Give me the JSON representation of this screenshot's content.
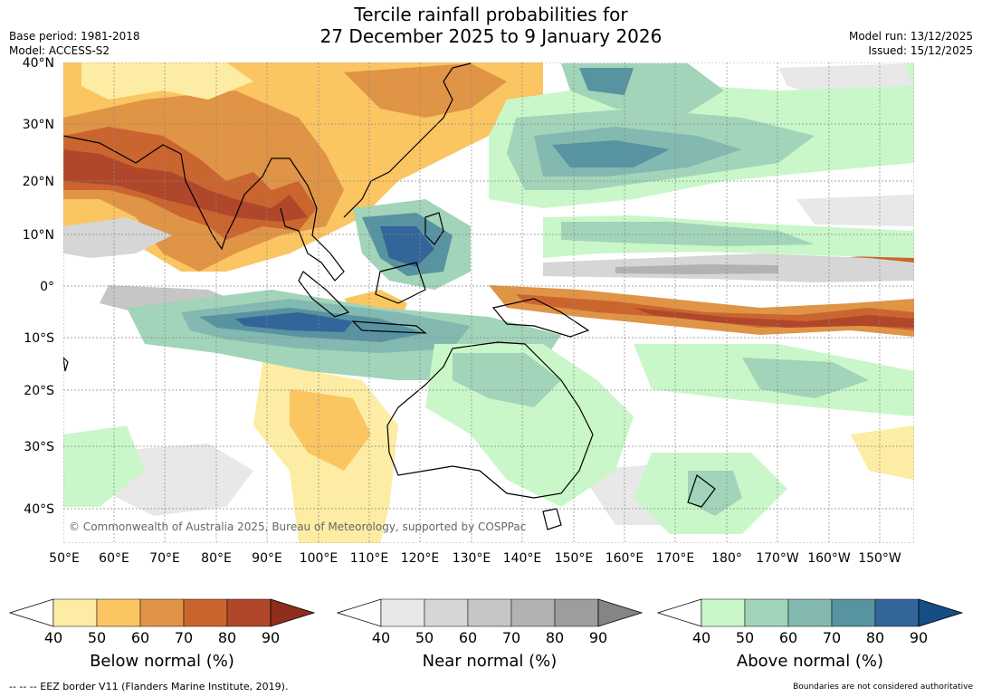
{
  "title": {
    "line1": "Tercile rainfall probabilities for",
    "line2": "27 December 2025 to 9 January 2026"
  },
  "meta_left": {
    "base_period": "Base period: 1981-2018",
    "model": "Model: ACCESS-S2"
  },
  "meta_right": {
    "model_run": "Model run: 13/12/2025",
    "issued": "Issued: 15/12/2025"
  },
  "map": {
    "copyright": "© Commonwealth of Australia 2025, Bureau of Meteorology, supported by COSPPac",
    "lat_labels": [
      "40°N",
      "30°N",
      "20°N",
      "10°N",
      "0°",
      "10°S",
      "20°S",
      "30°S",
      "40°S"
    ],
    "lon_labels": [
      "50°E",
      "60°E",
      "70°E",
      "80°E",
      "90°E",
      "100°E",
      "110°E",
      "120°E",
      "130°E",
      "140°E",
      "150°E",
      "160°E",
      "170°E",
      "180°",
      "170°W",
      "160°W",
      "150°W"
    ]
  },
  "colorbars": [
    {
      "title": "Below normal (%)",
      "ticks": [
        "40",
        "50",
        "60",
        "70",
        "80",
        "90"
      ],
      "colors": [
        "#fdeca3",
        "#fbc562",
        "#e09445",
        "#cb6530",
        "#b1472a",
        "#8f2d1c"
      ]
    },
    {
      "title": "Near normal (%)",
      "ticks": [
        "40",
        "50",
        "60",
        "70",
        "80",
        "90"
      ],
      "colors": [
        "#e8e8e8",
        "#d6d6d6",
        "#c6c6c6",
        "#b2b2b2",
        "#9d9d9d",
        "#858585"
      ]
    },
    {
      "title": "Above normal (%)",
      "ticks": [
        "40",
        "50",
        "60",
        "70",
        "80",
        "90"
      ],
      "colors": [
        "#c9f7c9",
        "#a1d4b9",
        "#83b9b0",
        "#5893a1",
        "#33659a",
        "#154d85"
      ]
    }
  ],
  "footer": {
    "eez": "--  --  -- EEZ border V11 (Flanders Marine Institute, 2019).",
    "note": "Boundaries are not considered authoritative"
  }
}
